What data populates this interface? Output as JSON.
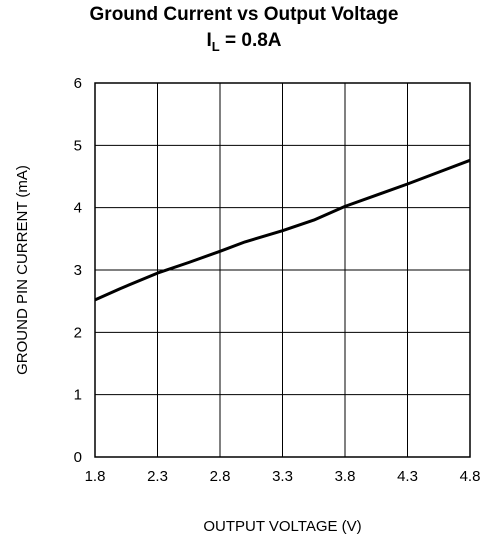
{
  "chart_data": {
    "type": "line",
    "title": "Ground Current vs Output Voltage",
    "subtitle": {
      "main": "I",
      "sub": "L",
      "rest": " = 0.8A"
    },
    "xlabel": "OUTPUT VOLTAGE (V)",
    "ylabel": "GROUND PIN CURRENT (mA)",
    "xlim": [
      1.8,
      4.8
    ],
    "ylim": [
      0,
      6
    ],
    "xticks": [
      "1.8",
      "2.3",
      "2.8",
      "3.3",
      "3.8",
      "4.3",
      "4.8"
    ],
    "yticks": [
      "0",
      "1",
      "2",
      "3",
      "4",
      "5",
      "6"
    ],
    "grid": true,
    "series": [
      {
        "x": [
          1.8,
          2.0,
          2.3,
          2.55,
          2.8,
          3.0,
          3.3,
          3.55,
          3.8,
          4.05,
          4.3,
          4.55,
          4.8
        ],
        "y": [
          2.52,
          2.7,
          2.95,
          3.12,
          3.3,
          3.45,
          3.63,
          3.8,
          4.02,
          4.2,
          4.38,
          4.57,
          4.76
        ]
      }
    ]
  }
}
